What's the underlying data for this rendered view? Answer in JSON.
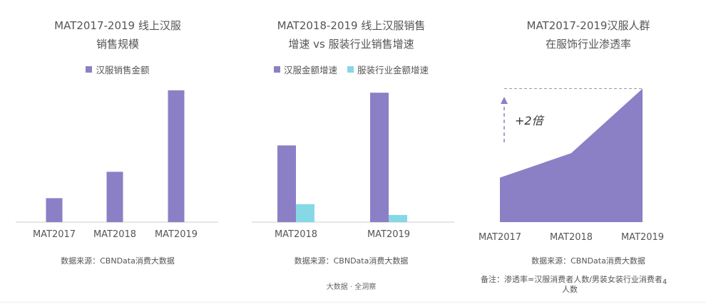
{
  "colors": {
    "purple": "#8b80c6",
    "cyan": "#86d8e6",
    "axis": "#cccccc"
  },
  "panel1": {
    "title_line1": "MAT2017-2019 线上汉服",
    "title_line2": "销售规模",
    "source": "数据来源：CBNData消费大数据"
  },
  "panel2": {
    "title_line1": "MAT2018-2019 线上汉服销售",
    "title_line2": "增速 vs 服装行业销售增速",
    "source": "数据来源：CBNData消费大数据",
    "brand": "大数据 · 全洞察"
  },
  "panel3": {
    "title_line1": "MAT2017-2019汉服人群",
    "title_line2": "在服饰行业渗透率",
    "annotation": "+2倍",
    "source": "数据来源：CBNData消费大数据",
    "note_line1": "备注：渗透率=汉服消费者人数/男装女装行业消费者",
    "note_line2": "人数",
    "note_suffix": "4"
  },
  "chart_data": [
    {
      "type": "bar",
      "categories": [
        "MAT2017",
        "MAT2018",
        "MAT2019"
      ],
      "series": [
        {
          "name": "汉服销售金额",
          "values": [
            1,
            2.1,
            5.5
          ]
        }
      ],
      "title": "MAT2017-2019 线上汉服销售规模",
      "ylim": [
        0,
        6
      ]
    },
    {
      "type": "bar",
      "categories": [
        "MAT2018",
        "MAT2019"
      ],
      "series": [
        {
          "name": "汉服金额增速",
          "values": [
            3.2,
            5.4
          ]
        },
        {
          "name": "服装行业金额增速",
          "values": [
            0.75,
            0.3
          ]
        }
      ],
      "title": "MAT2018-2019 线上汉服销售增速 vs 服装行业销售增速",
      "ylim": [
        0,
        6
      ]
    },
    {
      "type": "area",
      "x": [
        "MAT2017",
        "MAT2018",
        "MAT2019"
      ],
      "values": [
        1,
        1.55,
        3
      ],
      "title": "MAT2017-2019汉服人群在服饰行业渗透率",
      "ylim": [
        0,
        3.2
      ]
    }
  ]
}
